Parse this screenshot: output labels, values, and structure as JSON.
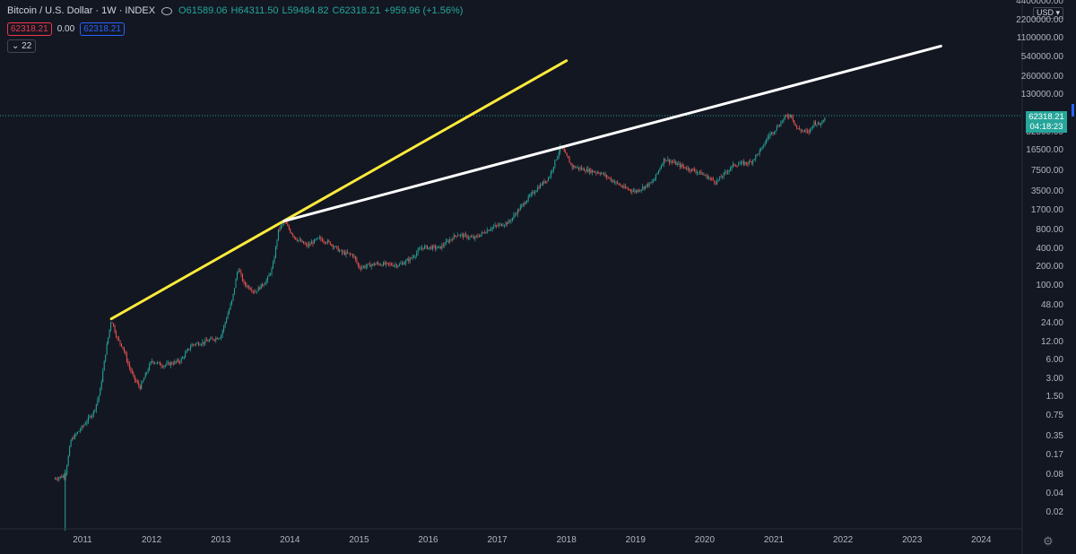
{
  "header": {
    "symbol": "Bitcoin / U.S. Dollar · 1W · INDEX",
    "open": "O61589.06",
    "high": "H64311.50",
    "low": "L59484.82",
    "close": "C62318.21",
    "change": "+959.96 (+1.56%)"
  },
  "indicators": {
    "bid": "62318.21",
    "spread": "0.00",
    "ask": "62318.21",
    "collapse_count": "22"
  },
  "price_axis": {
    "currency": "USD",
    "labels": [
      "4400000.00",
      "2200000.00",
      "1100000.00",
      "540000.00",
      "260000.00",
      "130000.00",
      "32500.00",
      "16500.00",
      "7500.00",
      "3500.00",
      "1700.00",
      "800.00",
      "400.00",
      "200.00",
      "100.00",
      "48.00",
      "24.00",
      "12.00",
      "6.00",
      "3.00",
      "1.50",
      "0.75",
      "0.35",
      "0.17",
      "0.08",
      "0.04",
      "0.02"
    ],
    "current_price": "62318.21",
    "countdown": "04:18:23"
  },
  "time_axis": {
    "labels": [
      "2011",
      "2012",
      "2013",
      "2014",
      "2015",
      "2016",
      "2017",
      "2018",
      "2019",
      "2020",
      "2021",
      "2022",
      "2023",
      "2024"
    ]
  },
  "colors": {
    "background": "#131722",
    "up": "#26a69a",
    "down": "#ef5350",
    "trendline_yellow": "#ffeb3b",
    "trendline_white": "#ffffff"
  },
  "chart_data": {
    "type": "candlestick",
    "scale": "log",
    "interval": "1W",
    "ylim": [
      0.01,
      4400000
    ],
    "grid": false,
    "series": [
      {
        "name": "Bitcoin / U.S. Dollar",
        "points": [
          {
            "x": "2010-08",
            "y": 0.07
          },
          {
            "x": "2010-10",
            "y": 0.08
          },
          {
            "x": "2010-11",
            "y": 0.3
          },
          {
            "x": "2011-01",
            "y": 0.5
          },
          {
            "x": "2011-03",
            "y": 0.9
          },
          {
            "x": "2011-04",
            "y": 1.8
          },
          {
            "x": "2011-05",
            "y": 8
          },
          {
            "x": "2011-06",
            "y": 29
          },
          {
            "x": "2011-07",
            "y": 14
          },
          {
            "x": "2011-08",
            "y": 10
          },
          {
            "x": "2011-09",
            "y": 5
          },
          {
            "x": "2011-10",
            "y": 3
          },
          {
            "x": "2011-11",
            "y": 2.2
          },
          {
            "x": "2012-01",
            "y": 6
          },
          {
            "x": "2012-03",
            "y": 5
          },
          {
            "x": "2012-06",
            "y": 6
          },
          {
            "x": "2012-08",
            "y": 11
          },
          {
            "x": "2012-10",
            "y": 12
          },
          {
            "x": "2013-01",
            "y": 15
          },
          {
            "x": "2013-03",
            "y": 60
          },
          {
            "x": "2013-04",
            "y": 200
          },
          {
            "x": "2013-05",
            "y": 110
          },
          {
            "x": "2013-07",
            "y": 80
          },
          {
            "x": "2013-09",
            "y": 125
          },
          {
            "x": "2013-10",
            "y": 200
          },
          {
            "x": "2013-11",
            "y": 800
          },
          {
            "x": "2013-12",
            "y": 1150
          },
          {
            "x": "2014-01",
            "y": 800
          },
          {
            "x": "2014-02",
            "y": 600
          },
          {
            "x": "2014-04",
            "y": 450
          },
          {
            "x": "2014-06",
            "y": 600
          },
          {
            "x": "2014-08",
            "y": 500
          },
          {
            "x": "2014-10",
            "y": 350
          },
          {
            "x": "2014-12",
            "y": 320
          },
          {
            "x": "2015-01",
            "y": 200
          },
          {
            "x": "2015-04",
            "y": 230
          },
          {
            "x": "2015-08",
            "y": 220
          },
          {
            "x": "2015-10",
            "y": 280
          },
          {
            "x": "2015-12",
            "y": 430
          },
          {
            "x": "2016-03",
            "y": 420
          },
          {
            "x": "2016-06",
            "y": 700
          },
          {
            "x": "2016-09",
            "y": 600
          },
          {
            "x": "2016-12",
            "y": 900
          },
          {
            "x": "2017-03",
            "y": 1100
          },
          {
            "x": "2017-06",
            "y": 2500
          },
          {
            "x": "2017-08",
            "y": 4000
          },
          {
            "x": "2017-10",
            "y": 6000
          },
          {
            "x": "2017-12",
            "y": 19000
          },
          {
            "x": "2018-02",
            "y": 9000
          },
          {
            "x": "2018-04",
            "y": 8000
          },
          {
            "x": "2018-07",
            "y": 7000
          },
          {
            "x": "2018-11",
            "y": 4000
          },
          {
            "x": "2019-01",
            "y": 3500
          },
          {
            "x": "2019-04",
            "y": 5000
          },
          {
            "x": "2019-06",
            "y": 12000
          },
          {
            "x": "2019-09",
            "y": 9000
          },
          {
            "x": "2019-12",
            "y": 7200
          },
          {
            "x": "2020-03",
            "y": 5000
          },
          {
            "x": "2020-06",
            "y": 9500
          },
          {
            "x": "2020-09",
            "y": 10500
          },
          {
            "x": "2020-11",
            "y": 18000
          },
          {
            "x": "2020-12",
            "y": 28000
          },
          {
            "x": "2021-01",
            "y": 34000
          },
          {
            "x": "2021-03",
            "y": 58000
          },
          {
            "x": "2021-04",
            "y": 63000
          },
          {
            "x": "2021-05",
            "y": 37000
          },
          {
            "x": "2021-07",
            "y": 32000
          },
          {
            "x": "2021-08",
            "y": 47000
          },
          {
            "x": "2021-09",
            "y": 43000
          },
          {
            "x": "2021-10",
            "y": 62318.21
          }
        ]
      }
    ],
    "trendlines": [
      {
        "color": "yellow",
        "from": {
          "x": "2011-06",
          "y": 29
        },
        "to": {
          "x": "2018-01",
          "y": 480000
        }
      },
      {
        "color": "white",
        "from": {
          "x": "2013-12",
          "y": 1150
        },
        "to": {
          "x": "2023-06",
          "y": 830000
        }
      }
    ],
    "current_price": 62318.21
  }
}
